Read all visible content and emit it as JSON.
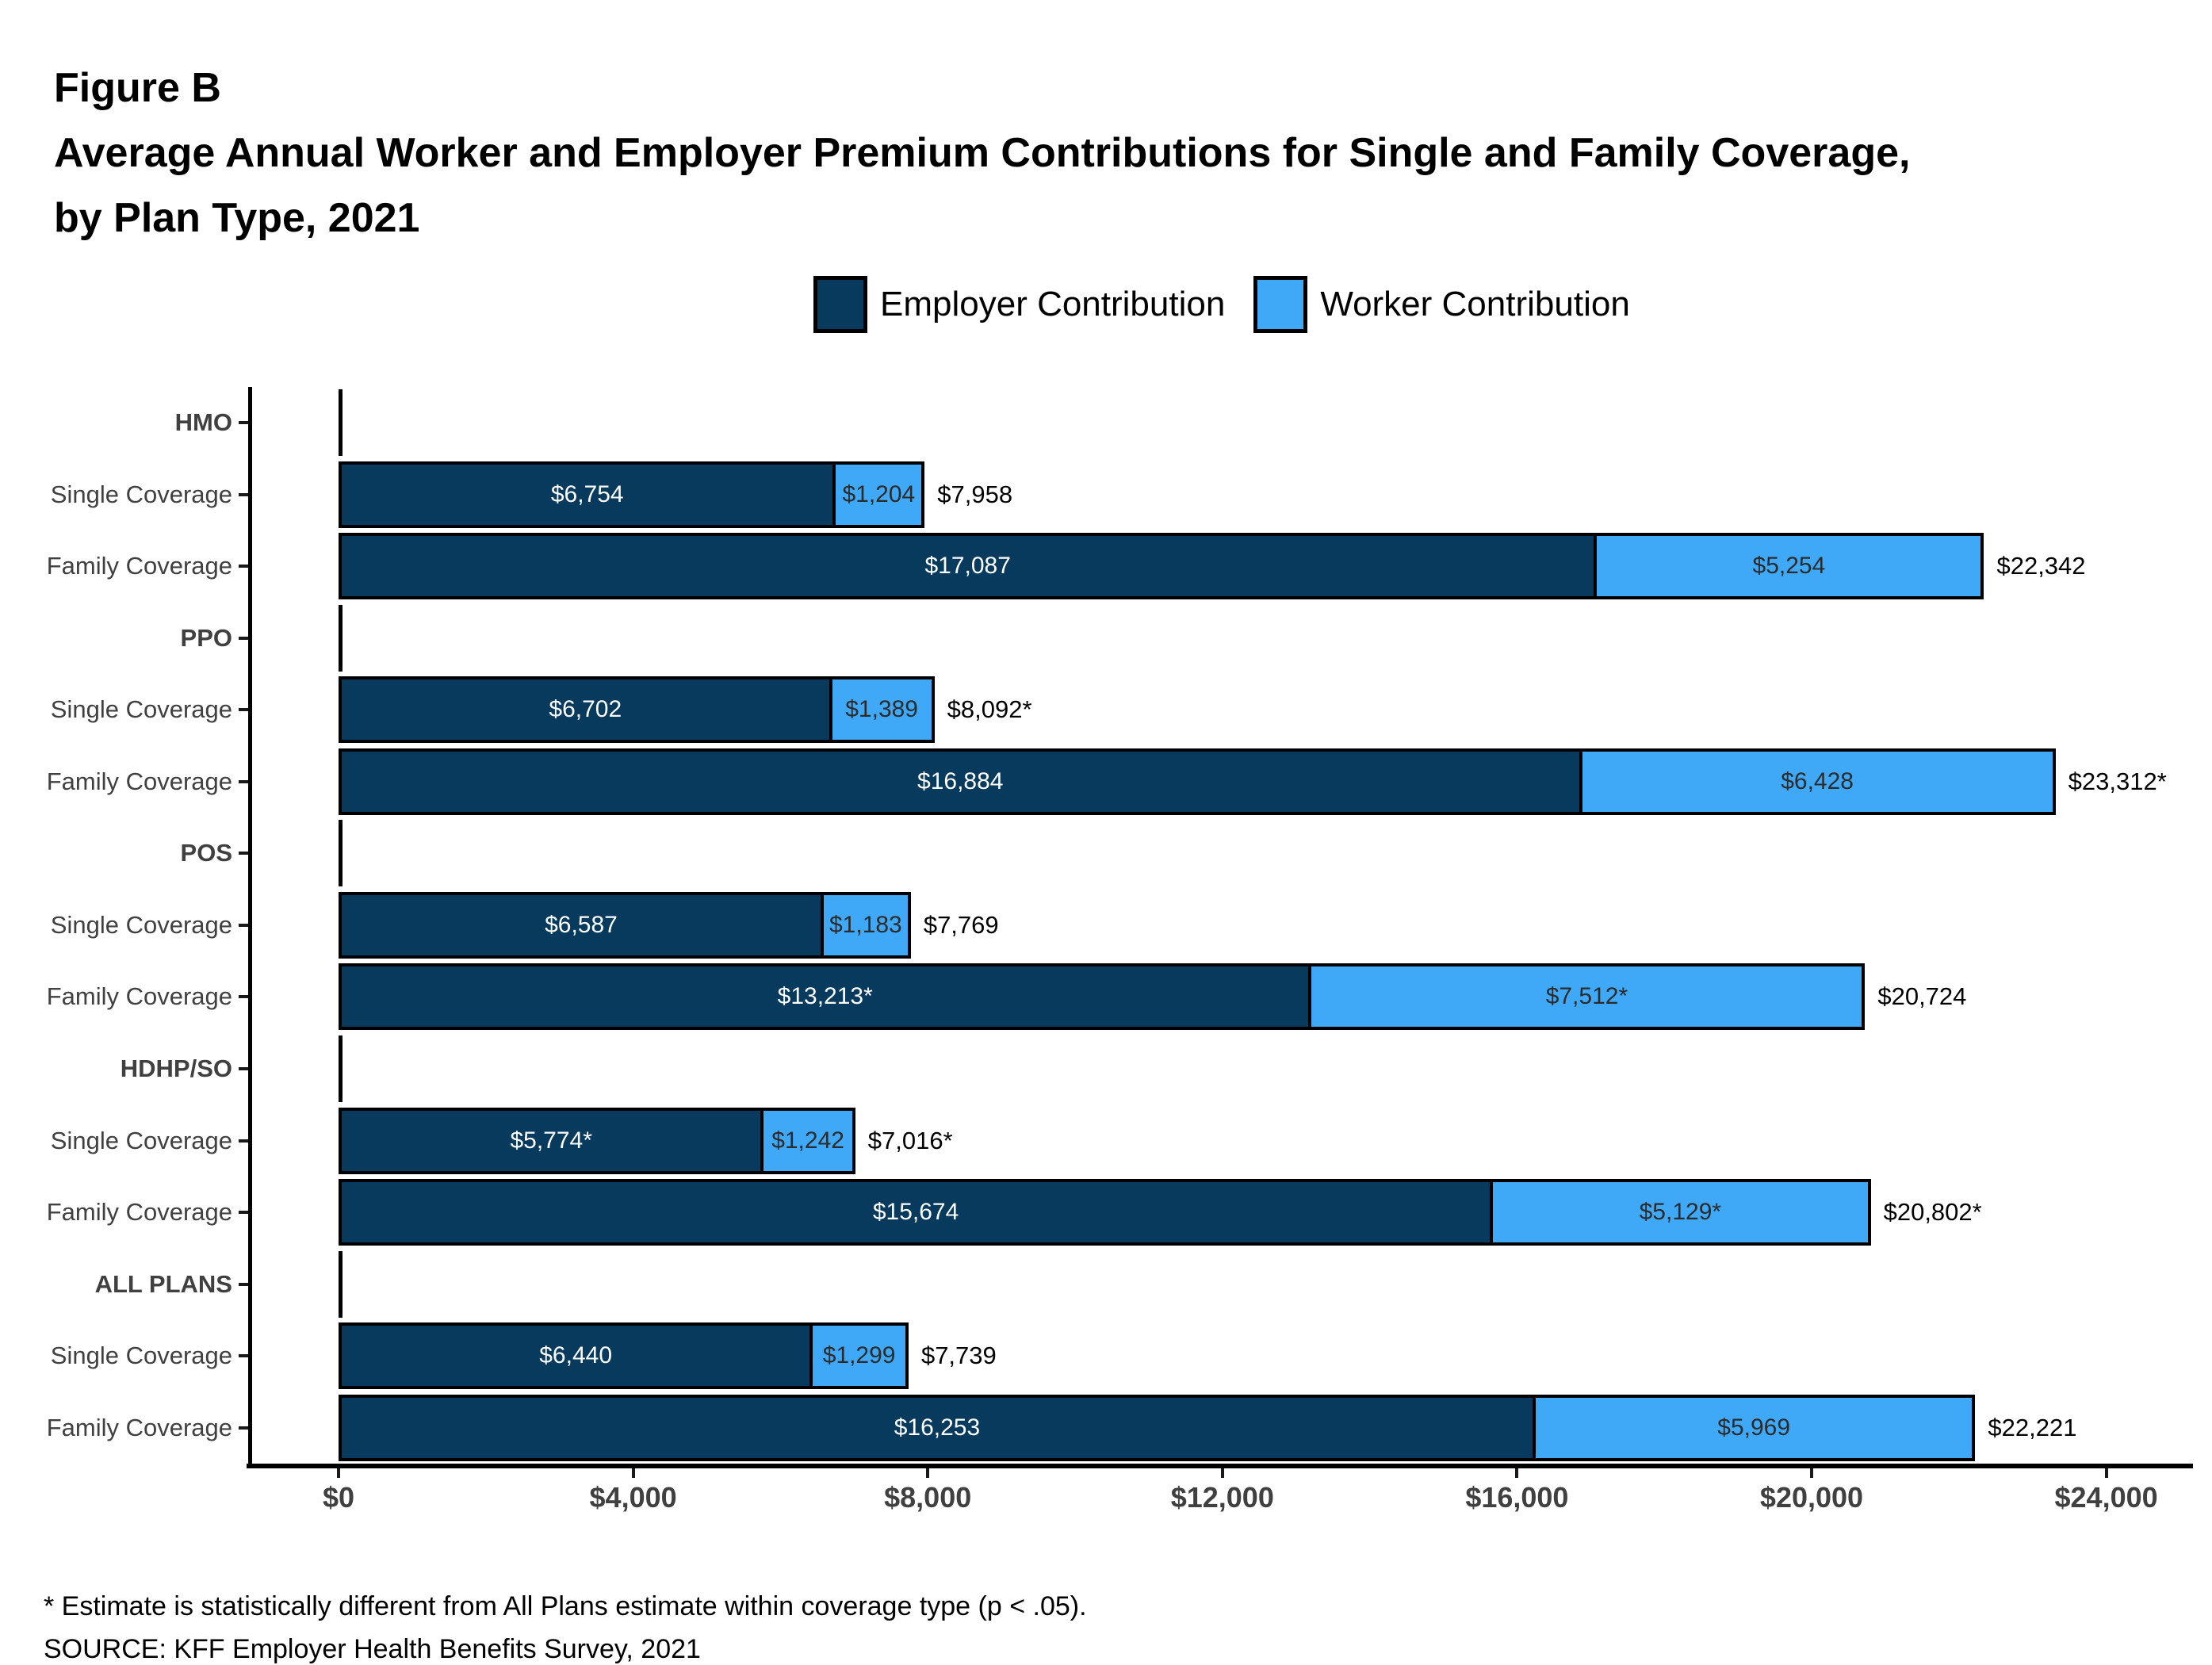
{
  "title": {
    "figure": "Figure B",
    "line1": "Average Annual Worker and Employer Premium Contributions for Single and Family Coverage,",
    "line2": "by Plan Type, 2021"
  },
  "legend": {
    "items": [
      {
        "label": "Employer Contribution",
        "series": "employer"
      },
      {
        "label": "Worker Contribution",
        "series": "worker"
      }
    ]
  },
  "footnotes": {
    "asterisk": "* Estimate is statistically different from All Plans estimate within coverage type (p < .05).",
    "source": "SOURCE: KFF Employer Health Benefits Survey, 2021"
  },
  "chart_data": {
    "type": "bar",
    "orientation": "horizontal",
    "stacked": true,
    "series": [
      "Employer Contribution",
      "Worker Contribution"
    ],
    "colors": {
      "employer": "#073A5D",
      "worker": "#3FA8F7",
      "bar_border": "#000000",
      "axis_text": "#404040"
    },
    "x_axis": {
      "tick_labels": [
        "$0",
        "$4,000",
        "$8,000",
        "$12,000",
        "$16,000",
        "$20,000",
        "$24,000"
      ],
      "tick_values": [
        0,
        4000,
        8000,
        12000,
        16000,
        20000,
        24000
      ],
      "xlim": [
        0,
        24000
      ]
    },
    "groups": [
      {
        "plan": "HMO",
        "bars": [
          {
            "label": "Single Coverage",
            "employer": 6754,
            "worker": 1204,
            "total": 7958,
            "labels": {
              "employer": "$6,754",
              "worker": "$1,204",
              "total": "$7,958"
            }
          },
          {
            "label": "Family Coverage",
            "employer": 17087,
            "worker": 5254,
            "total": 22342,
            "labels": {
              "employer": "$17,087",
              "worker": "$5,254",
              "total": "$22,342"
            }
          }
        ]
      },
      {
        "plan": "PPO",
        "bars": [
          {
            "label": "Single Coverage",
            "employer": 6702,
            "worker": 1389,
            "total": 8092,
            "labels": {
              "employer": "$6,702",
              "worker": "$1,389",
              "total": "$8,092*"
            }
          },
          {
            "label": "Family Coverage",
            "employer": 16884,
            "worker": 6428,
            "total": 23312,
            "labels": {
              "employer": "$16,884",
              "worker": "$6,428",
              "total": "$23,312*"
            }
          }
        ]
      },
      {
        "plan": "POS",
        "bars": [
          {
            "label": "Single Coverage",
            "employer": 6587,
            "worker": 1183,
            "total": 7769,
            "labels": {
              "employer": "$6,587",
              "worker": "$1,183",
              "total": "$7,769"
            }
          },
          {
            "label": "Family Coverage",
            "employer": 13213,
            "worker": 7512,
            "total": 20724,
            "labels": {
              "employer": "$13,213*",
              "worker": "$7,512*",
              "total": "$20,724"
            }
          }
        ]
      },
      {
        "plan": "HDHP/SO",
        "bars": [
          {
            "label": "Single Coverage",
            "employer": 5774,
            "worker": 1242,
            "total": 7016,
            "labels": {
              "employer": "$5,774*",
              "worker": "$1,242",
              "total": "$7,016*"
            }
          },
          {
            "label": "Family Coverage",
            "employer": 15674,
            "worker": 5129,
            "total": 20802,
            "labels": {
              "employer": "$15,674",
              "worker": "$5,129*",
              "total": "$20,802*"
            }
          }
        ]
      },
      {
        "plan": "ALL PLANS",
        "bars": [
          {
            "label": "Single Coverage",
            "employer": 6440,
            "worker": 1299,
            "total": 7739,
            "labels": {
              "employer": "$6,440",
              "worker": "$1,299",
              "total": "$7,739"
            }
          },
          {
            "label": "Family Coverage",
            "employer": 16253,
            "worker": 5969,
            "total": 22221,
            "labels": {
              "employer": "$16,253",
              "worker": "$5,969",
              "total": "$22,221"
            }
          }
        ]
      }
    ]
  }
}
